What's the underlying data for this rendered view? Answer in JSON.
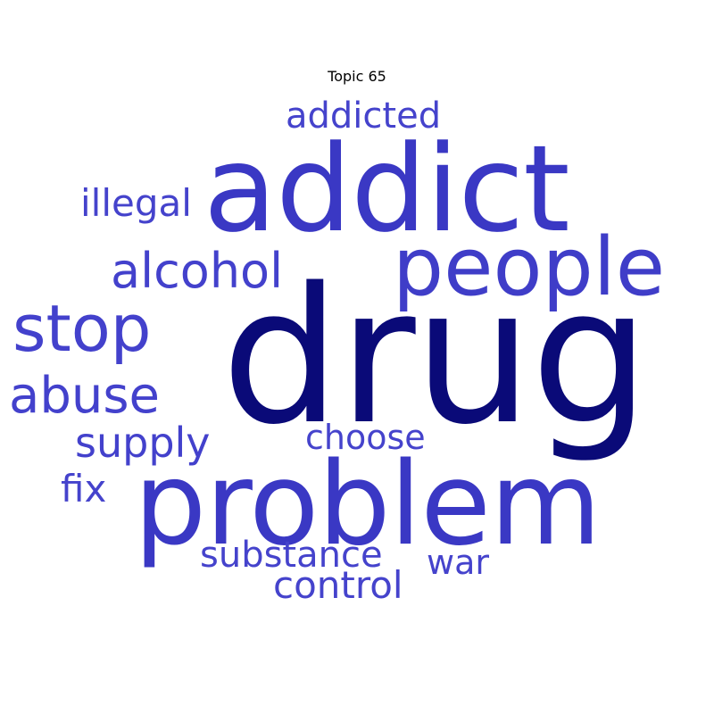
{
  "title": "Topic 65",
  "words": {
    "drug": "drug",
    "addict": "addict",
    "problem": "problem",
    "people": "people",
    "stop": "stop",
    "alcohol": "alcohol",
    "abuse": "abuse",
    "supply": "supply",
    "addicted": "addicted",
    "illegal": "illegal",
    "choose": "choose",
    "fix": "fix",
    "substance": "substance",
    "war": "war",
    "control": "control"
  },
  "colors": {
    "background": "#ffffff",
    "dominant": "#0a0a78",
    "primary": "#3a38c4",
    "secondary": "#4543cc"
  }
}
